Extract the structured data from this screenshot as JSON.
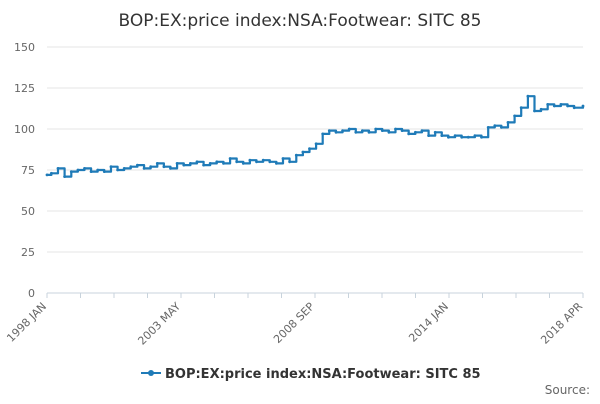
{
  "chart_data": {
    "type": "line",
    "title": "BOP:EX:price index:NSA:Footwear: SITC 85",
    "xlabel": "",
    "ylabel": "",
    "ylim": [
      0,
      150
    ],
    "y_ticks": [
      "0",
      "25",
      "50",
      "75",
      "100",
      "125",
      "150"
    ],
    "x_tick_labels": [
      "1998 JAN",
      "2003 MAY",
      "2008 SEP",
      "2014 JAN",
      "2018 APR"
    ],
    "grid": true,
    "legend_position": "bottom",
    "source_label": "Source:",
    "colors": {
      "series": "#1f7bb8",
      "grid": "#e6e6e6",
      "axis": "#c8d3dc",
      "text": "#333333",
      "tick_text": "#666666"
    },
    "x_start": "1998-01",
    "x_end": "2018-04",
    "series": [
      {
        "name": "BOP:EX:price index:NSA:Footwear: SITC 85",
        "x": [
          "1998-01",
          "1998-03",
          "1998-06",
          "1998-09",
          "1998-12",
          "1999-03",
          "1999-06",
          "1999-09",
          "1999-12",
          "2000-03",
          "2000-06",
          "2000-09",
          "2000-12",
          "2001-03",
          "2001-06",
          "2001-09",
          "2001-12",
          "2002-03",
          "2002-06",
          "2002-09",
          "2002-12",
          "2003-03",
          "2003-06",
          "2003-09",
          "2003-12",
          "2004-03",
          "2004-06",
          "2004-09",
          "2004-12",
          "2005-03",
          "2005-06",
          "2005-09",
          "2005-12",
          "2006-03",
          "2006-06",
          "2006-09",
          "2006-12",
          "2007-03",
          "2007-06",
          "2007-09",
          "2007-12",
          "2008-03",
          "2008-06",
          "2008-09",
          "2008-12",
          "2009-03",
          "2009-06",
          "2009-09",
          "2009-12",
          "2010-03",
          "2010-06",
          "2010-09",
          "2010-12",
          "2011-03",
          "2011-06",
          "2011-09",
          "2011-12",
          "2012-03",
          "2012-06",
          "2012-09",
          "2012-12",
          "2013-03",
          "2013-06",
          "2013-09",
          "2013-12",
          "2014-03",
          "2014-06",
          "2014-09",
          "2014-12",
          "2015-03",
          "2015-06",
          "2015-09",
          "2015-12",
          "2016-03",
          "2016-06",
          "2016-09",
          "2016-12",
          "2017-03",
          "2017-06",
          "2017-09",
          "2017-12",
          "2018-04"
        ],
        "values": [
          72,
          73,
          76,
          71,
          74,
          75,
          76,
          74,
          75,
          74,
          77,
          75,
          76,
          77,
          78,
          76,
          77,
          79,
          77,
          76,
          79,
          78,
          79,
          80,
          78,
          79,
          80,
          79,
          82,
          80,
          79,
          81,
          80,
          81,
          80,
          79,
          82,
          80,
          84,
          86,
          88,
          91,
          97,
          99,
          98,
          99,
          100,
          98,
          99,
          98,
          100,
          99,
          98,
          100,
          99,
          97,
          98,
          99,
          96,
          98,
          96,
          95,
          96,
          95,
          95,
          96,
          95,
          101,
          102,
          101,
          104,
          108,
          113,
          120,
          111,
          112,
          115,
          114,
          115,
          114,
          113,
          114
        ]
      }
    ]
  }
}
